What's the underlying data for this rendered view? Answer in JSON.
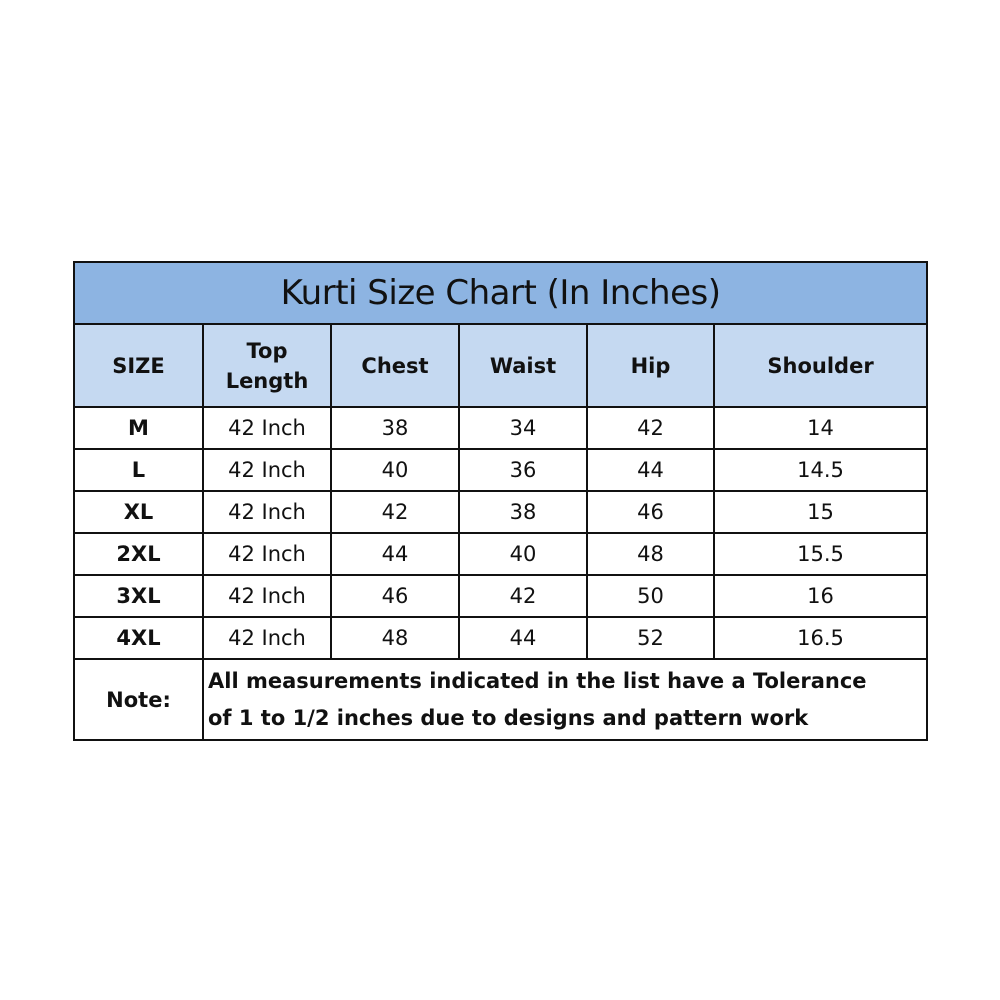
{
  "title": "Kurti Size Chart (In Inches)",
  "colors": {
    "title_bg": "#8DB4E2",
    "header_bg": "#C5D9F1",
    "border": "#111111"
  },
  "headers": [
    "SIZE",
    "Top Length",
    "Chest",
    "Waist",
    "Hip",
    "Shoulder"
  ],
  "rows": [
    [
      "M",
      "42 Inch",
      "38",
      "34",
      "42",
      "14"
    ],
    [
      "L",
      "42 Inch",
      "40",
      "36",
      "44",
      "14.5"
    ],
    [
      "XL",
      "42 Inch",
      "42",
      "38",
      "46",
      "15"
    ],
    [
      "2XL",
      "42 Inch",
      "44",
      "40",
      "48",
      "15.5"
    ],
    [
      "3XL",
      "42 Inch",
      "46",
      "42",
      "50",
      "16"
    ],
    [
      "4XL",
      "42 Inch",
      "48",
      "44",
      "52",
      "16.5"
    ]
  ],
  "note": {
    "label": "Note:",
    "line1": "All measurements indicated in the list have a Tolerance",
    "line2": "of 1 to 1/2 inches due to designs and pattern work"
  }
}
